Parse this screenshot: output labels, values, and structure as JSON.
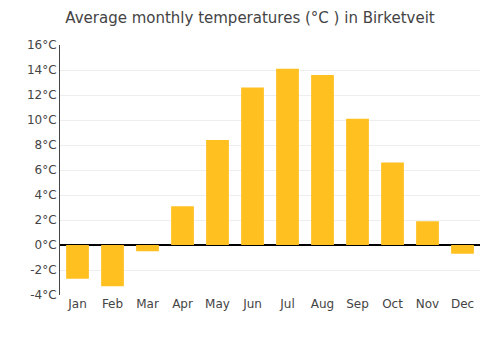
{
  "chart_data": {
    "type": "bar",
    "title": "Average monthly temperatures (°C ) in Birketveit",
    "categories": [
      "Jan",
      "Feb",
      "Mar",
      "Apr",
      "May",
      "Jun",
      "Jul",
      "Aug",
      "Sep",
      "Oct",
      "Nov",
      "Dec"
    ],
    "values": [
      -2.7,
      -3.3,
      -0.5,
      3.1,
      8.4,
      12.6,
      14.1,
      13.6,
      10.1,
      6.6,
      1.9,
      -0.7
    ],
    "color": "#FFC020",
    "ylim": [
      -4,
      16
    ],
    "yticks": [
      {
        "value": -4,
        "label": "-4°C"
      },
      {
        "value": -2,
        "label": "-2°C"
      },
      {
        "value": 0,
        "label": "0°C"
      },
      {
        "value": 2,
        "label": "2°C"
      },
      {
        "value": 4,
        "label": "4°C"
      },
      {
        "value": 6,
        "label": "6°C"
      },
      {
        "value": 8,
        "label": "8°C"
      },
      {
        "value": 10,
        "label": "10°C"
      },
      {
        "value": 12,
        "label": "12°C"
      },
      {
        "value": 14,
        "label": "14°C"
      },
      {
        "value": 16,
        "label": "16°C"
      }
    ],
    "grid": true
  }
}
